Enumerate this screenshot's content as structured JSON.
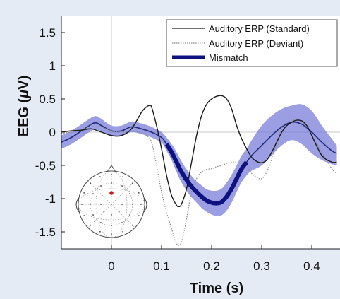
{
  "chart_data": {
    "type": "line",
    "xlabel": "Time (s)",
    "ylabel_prefix": "EEG (",
    "ylabel_symbol": "μ",
    "ylabel_suffix": "V)",
    "xlim": [
      -0.1,
      0.45
    ],
    "ylim": [
      -1.75,
      1.75
    ],
    "xticks": [
      0,
      0.1,
      0.2,
      0.3,
      0.4
    ],
    "xtick_labels": [
      "0",
      "0.1",
      "0.2",
      "0.3",
      "0.4"
    ],
    "yticks": [
      1.5,
      1,
      0.5,
      0,
      -0.5,
      -1,
      -1.5
    ],
    "ytick_labels": [
      "1.5",
      "1",
      "0.5",
      "0",
      "-0.5",
      "-1",
      "-1.5"
    ],
    "legend_position": "top-right",
    "series": [
      {
        "name": "Auditory ERP (Standard)",
        "style": "solid",
        "color": "#1a1a1a",
        "x": [
          -0.1,
          -0.08,
          -0.06,
          -0.04,
          -0.02,
          0.0,
          0.02,
          0.04,
          0.06,
          0.07,
          0.075,
          0.08,
          0.09,
          0.1,
          0.11,
          0.12,
          0.13,
          0.135,
          0.14,
          0.15,
          0.16,
          0.17,
          0.18,
          0.19,
          0.2,
          0.21,
          0.22,
          0.23,
          0.24,
          0.25,
          0.26,
          0.27,
          0.28,
          0.29,
          0.3,
          0.31,
          0.32,
          0.33,
          0.34,
          0.35,
          0.36,
          0.37,
          0.38,
          0.39,
          0.4,
          0.42,
          0.44,
          0.45
        ],
        "y": [
          0.0,
          0.02,
          0.03,
          0.05,
          0.0,
          -0.05,
          -0.05,
          0.05,
          0.3,
          0.38,
          0.4,
          0.38,
          0.1,
          -0.25,
          -0.65,
          -0.95,
          -1.1,
          -1.12,
          -1.08,
          -0.85,
          -0.45,
          -0.05,
          0.25,
          0.42,
          0.5,
          0.54,
          0.55,
          0.5,
          0.35,
          0.1,
          -0.1,
          -0.25,
          -0.38,
          -0.44,
          -0.46,
          -0.42,
          -0.3,
          -0.15,
          0.0,
          0.1,
          0.15,
          0.18,
          0.17,
          0.1,
          -0.05,
          -0.35,
          -0.45,
          -0.45
        ]
      },
      {
        "name": "Auditory ERP (Deviant)",
        "style": "dotted",
        "color": "#8a8a8a",
        "x": [
          -0.1,
          -0.08,
          -0.06,
          -0.04,
          -0.02,
          0.0,
          0.02,
          0.04,
          0.06,
          0.07,
          0.08,
          0.09,
          0.1,
          0.11,
          0.12,
          0.13,
          0.14,
          0.15,
          0.16,
          0.17,
          0.18,
          0.19,
          0.2,
          0.21,
          0.22,
          0.23,
          0.24,
          0.25,
          0.26,
          0.27,
          0.28,
          0.29,
          0.3,
          0.31,
          0.32,
          0.33,
          0.34,
          0.35,
          0.36,
          0.37,
          0.38,
          0.39,
          0.4,
          0.42,
          0.44,
          0.45
        ],
        "y": [
          -0.02,
          0.0,
          0.03,
          0.12,
          0.08,
          0.02,
          0.0,
          0.02,
          -0.02,
          -0.05,
          -0.15,
          -0.5,
          -0.9,
          -1.2,
          -1.45,
          -1.68,
          -1.65,
          -1.3,
          -0.9,
          -0.7,
          -0.6,
          -0.56,
          -0.55,
          -0.52,
          -0.5,
          -0.47,
          -0.45,
          -0.45,
          -0.47,
          -0.5,
          -0.62,
          -0.68,
          -0.7,
          -0.6,
          -0.4,
          -0.15,
          0.05,
          0.15,
          0.18,
          0.19,
          0.16,
          0.08,
          -0.05,
          -0.3,
          -0.55,
          -0.62
        ]
      },
      {
        "name": "",
        "style": "smooth",
        "color": "#1f2a7a",
        "x": [
          -0.1,
          -0.08,
          -0.06,
          -0.04,
          -0.03,
          -0.02,
          0.0,
          0.02,
          0.04,
          0.06,
          0.08,
          0.1,
          0.11,
          0.12,
          0.13,
          0.14,
          0.15,
          0.16,
          0.17,
          0.18,
          0.19,
          0.2,
          0.21,
          0.22,
          0.23,
          0.24,
          0.25,
          0.26,
          0.27,
          0.28,
          0.3,
          0.32,
          0.34,
          0.36,
          0.38,
          0.4,
          0.42,
          0.44,
          0.45
        ],
        "y": [
          -0.15,
          -0.08,
          0.02,
          0.12,
          0.14,
          0.1,
          0.02,
          0.02,
          0.08,
          0.05,
          0.0,
          -0.08,
          -0.18,
          -0.3,
          -0.45,
          -0.6,
          -0.72,
          -0.82,
          -0.9,
          -0.97,
          -1.03,
          -1.06,
          -1.07,
          -1.05,
          -0.97,
          -0.85,
          -0.7,
          -0.55,
          -0.45,
          -0.35,
          -0.2,
          -0.05,
          0.08,
          0.15,
          0.12,
          0.0,
          -0.15,
          -0.28,
          -0.32
        ]
      },
      {
        "name": "Mismatch",
        "style": "thick",
        "color": "#0d1280",
        "x": [
          0.11,
          0.12,
          0.13,
          0.14,
          0.15,
          0.16,
          0.17,
          0.18,
          0.19,
          0.2,
          0.21,
          0.22,
          0.23,
          0.24,
          0.25,
          0.26,
          0.27
        ],
        "y": [
          -0.18,
          -0.3,
          -0.45,
          -0.6,
          -0.72,
          -0.82,
          -0.9,
          -0.97,
          -1.03,
          -1.06,
          -1.07,
          -1.05,
          -0.97,
          -0.85,
          -0.7,
          -0.55,
          -0.45
        ]
      }
    ],
    "band": {
      "color": "#7a7ed8",
      "x": [
        -0.1,
        -0.08,
        -0.06,
        -0.04,
        -0.03,
        -0.02,
        0.0,
        0.02,
        0.04,
        0.06,
        0.08,
        0.1,
        0.11,
        0.12,
        0.13,
        0.14,
        0.15,
        0.16,
        0.17,
        0.18,
        0.19,
        0.2,
        0.21,
        0.22,
        0.23,
        0.24,
        0.25,
        0.26,
        0.27,
        0.28,
        0.3,
        0.32,
        0.34,
        0.36,
        0.38,
        0.4,
        0.42,
        0.44,
        0.45
      ],
      "upper": [
        -0.05,
        0.02,
        0.12,
        0.22,
        0.24,
        0.2,
        0.1,
        0.1,
        0.16,
        0.13,
        0.08,
        0.0,
        -0.08,
        -0.18,
        -0.3,
        -0.44,
        -0.56,
        -0.66,
        -0.74,
        -0.8,
        -0.86,
        -0.88,
        -0.88,
        -0.85,
        -0.76,
        -0.64,
        -0.5,
        -0.35,
        -0.25,
        -0.12,
        0.1,
        0.25,
        0.35,
        0.4,
        0.42,
        0.32,
        0.1,
        -0.1,
        -0.2
      ],
      "lower": [
        -0.25,
        -0.18,
        -0.08,
        0.02,
        0.04,
        0.0,
        -0.06,
        -0.06,
        0.0,
        -0.03,
        -0.08,
        -0.16,
        -0.28,
        -0.42,
        -0.6,
        -0.76,
        -0.88,
        -0.98,
        -1.06,
        -1.14,
        -1.2,
        -1.24,
        -1.26,
        -1.25,
        -1.18,
        -1.06,
        -0.9,
        -0.75,
        -0.65,
        -0.58,
        -0.5,
        -0.35,
        -0.2,
        -0.12,
        -0.18,
        -0.32,
        -0.42,
        -0.48,
        -0.5
      ]
    },
    "inset": {
      "type": "scalp-topography",
      "marked_electrode_color": "#cc1a1a"
    }
  }
}
